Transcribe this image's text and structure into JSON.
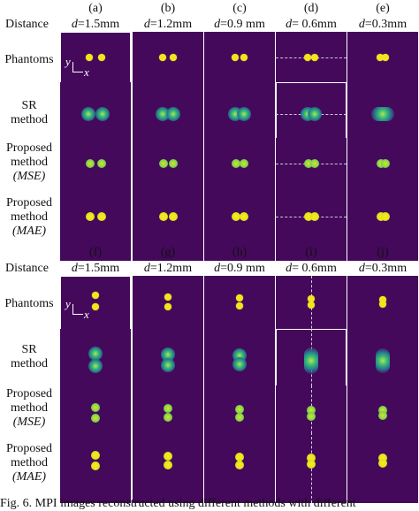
{
  "figure": {
    "blocks": [
      {
        "column_letters": [
          "(a)",
          "(b)",
          "(c)",
          "(d)",
          "(e)"
        ],
        "header_label": "Distance",
        "distances": [
          {
            "var": "d",
            "value": "=1.5mm"
          },
          {
            "var": "d",
            "value": "=1.2mm"
          },
          {
            "var": "d",
            "value": "=0.9 mm"
          },
          {
            "var": "d",
            "value": "= 0.6mm"
          },
          {
            "var": "d",
            "value": "=0.3mm"
          }
        ],
        "orientation": "horizontal"
      },
      {
        "column_letters": [
          "(f)",
          "(g)",
          "(h)",
          "(i)",
          "(j)"
        ],
        "header_label": "Distance",
        "distances": [
          {
            "var": "d",
            "value": "=1.5mm"
          },
          {
            "var": "d",
            "value": "=1.2mm"
          },
          {
            "var": "d",
            "value": "=0.9 mm"
          },
          {
            "var": "d",
            "value": "= 0.6mm"
          },
          {
            "var": "d",
            "value": "=0.3mm"
          }
        ],
        "orientation": "vertical"
      }
    ],
    "row_labels": [
      {
        "line1": "Phantoms",
        "line2": "",
        "line3": ""
      },
      {
        "line1": "SR",
        "line2": "method",
        "line3": ""
      },
      {
        "line1": "Proposed",
        "line2": "method",
        "line3": "(MSE)"
      },
      {
        "line1": "Proposed",
        "line2": "method",
        "line3": "(MAE)"
      }
    ],
    "axis": {
      "y": "y",
      "x": "x"
    },
    "caption": "Fig. 6.   MPI images reconstructed using different methods with different"
  }
}
